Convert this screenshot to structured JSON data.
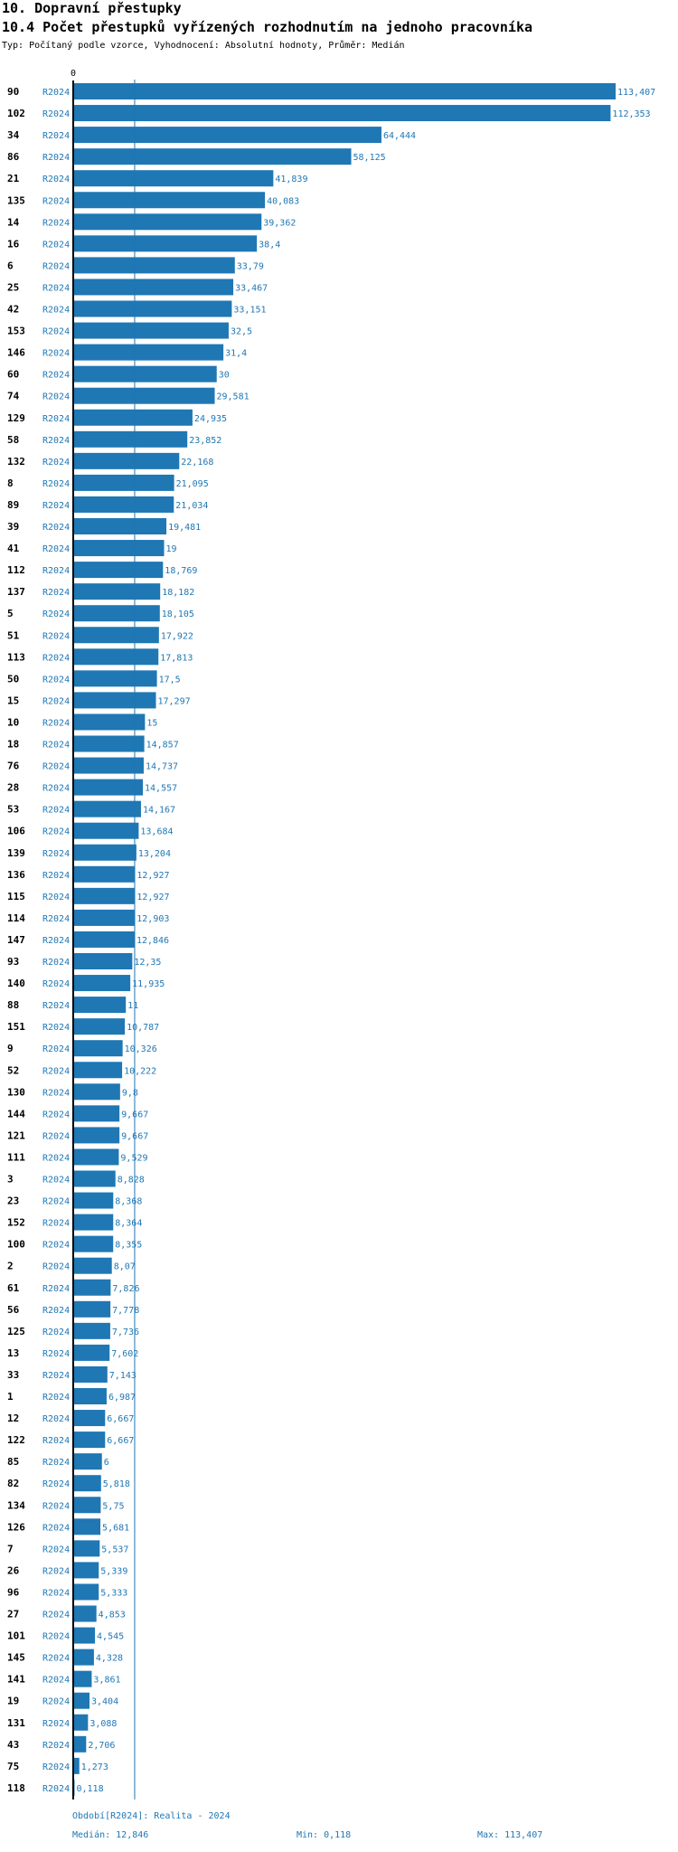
{
  "header": {
    "title": "10. Dopravní přestupky",
    "subtitle": "10.4 Počet přestupků vyřízených rozhodnutím na jednoho pracovníka",
    "description": "Typ: Počítaný podle vzorce, Vyhodnocení: Absolutní hodnoty, Průměr: Medián"
  },
  "footer": {
    "period": "Období[R2024]: Realita - 2024",
    "median": "Medián: 12,846",
    "min": "Min: 0,118",
    "max": "Max: 113,407"
  },
  "colors": {
    "bar": "#1f77b4",
    "text": "#000000",
    "accent": "#1f77b4"
  },
  "chart_data": {
    "type": "bar",
    "orientation": "horizontal",
    "axis_zero_label": "0",
    "series_label": "R2024",
    "median": 12.846,
    "xlim": [
      0,
      113.407
    ],
    "categories": [
      "90",
      "102",
      "34",
      "86",
      "21",
      "135",
      "14",
      "16",
      "6",
      "25",
      "42",
      "153",
      "146",
      "60",
      "74",
      "129",
      "58",
      "132",
      "8",
      "89",
      "39",
      "41",
      "112",
      "137",
      "5",
      "51",
      "113",
      "50",
      "15",
      "10",
      "18",
      "76",
      "28",
      "53",
      "106",
      "139",
      "136",
      "115",
      "114",
      "147",
      "93",
      "140",
      "88",
      "151",
      "9",
      "52",
      "130",
      "144",
      "121",
      "111",
      "3",
      "23",
      "152",
      "100",
      "2",
      "61",
      "56",
      "125",
      "13",
      "33",
      "1",
      "12",
      "122",
      "85",
      "82",
      "134",
      "126",
      "7",
      "26",
      "96",
      "27",
      "101",
      "145",
      "141",
      "19",
      "131",
      "43",
      "75",
      "118"
    ],
    "values": [
      113.407,
      112.353,
      64.444,
      58.125,
      41.839,
      40.083,
      39.362,
      38.4,
      33.79,
      33.467,
      33.151,
      32.5,
      31.4,
      30,
      29.581,
      24.935,
      23.852,
      22.168,
      21.095,
      21.034,
      19.481,
      19,
      18.769,
      18.182,
      18.105,
      17.922,
      17.813,
      17.5,
      17.297,
      15,
      14.857,
      14.737,
      14.557,
      14.167,
      13.684,
      13.204,
      12.927,
      12.927,
      12.903,
      12.846,
      12.35,
      11.935,
      11,
      10.787,
      10.326,
      10.222,
      9.8,
      9.667,
      9.667,
      9.529,
      8.828,
      8.368,
      8.364,
      8.355,
      8.07,
      7.826,
      7.778,
      7.736,
      7.602,
      7.143,
      6.987,
      6.667,
      6.667,
      6,
      5.818,
      5.75,
      5.681,
      5.537,
      5.339,
      5.333,
      4.853,
      4.545,
      4.328,
      3.861,
      3.404,
      3.088,
      2.706,
      1.273,
      0.118
    ],
    "value_labels": [
      "113,407",
      "112,353",
      "64,444",
      "58,125",
      "41,839",
      "40,083",
      "39,362",
      "38,4",
      "33,79",
      "33,467",
      "33,151",
      "32,5",
      "31,4",
      "30",
      "29,581",
      "24,935",
      "23,852",
      "22,168",
      "21,095",
      "21,034",
      "19,481",
      "19",
      "18,769",
      "18,182",
      "18,105",
      "17,922",
      "17,813",
      "17,5",
      "17,297",
      "15",
      "14,857",
      "14,737",
      "14,557",
      "14,167",
      "13,684",
      "13,204",
      "12,927",
      "12,927",
      "12,903",
      "12,846",
      "12,35",
      "11,935",
      "11",
      "10,787",
      "10,326",
      "10,222",
      "9,8",
      "9,667",
      "9,667",
      "9,529",
      "8,828",
      "8,368",
      "8,364",
      "8,355",
      "8,07",
      "7,826",
      "7,778",
      "7,736",
      "7,602",
      "7,143",
      "6,987",
      "6,667",
      "6,667",
      "6",
      "5,818",
      "5,75",
      "5,681",
      "5,537",
      "5,339",
      "5,333",
      "4,853",
      "4,545",
      "4,328",
      "3,861",
      "3,404",
      "3,088",
      "2,706",
      "1,273",
      "0,118"
    ]
  }
}
